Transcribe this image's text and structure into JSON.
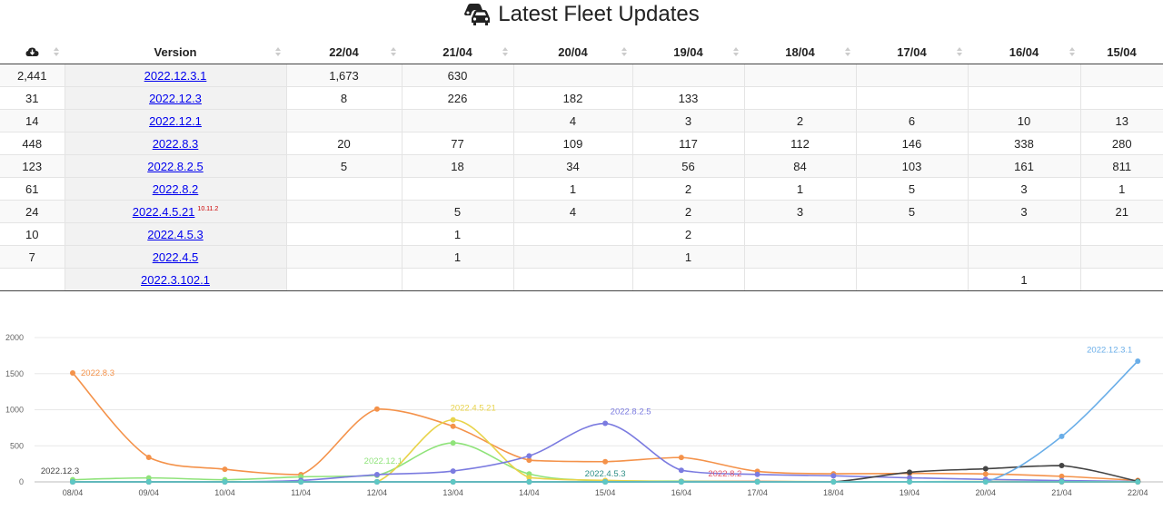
{
  "page": {
    "title": "Latest Fleet Updates",
    "title_icon": "cars-icon"
  },
  "table": {
    "columns": [
      "",
      "Version",
      "22/04",
      "21/04",
      "20/04",
      "19/04",
      "18/04",
      "17/04",
      "16/04",
      "15/04"
    ],
    "rows": [
      {
        "total": "2,441",
        "version": "2022.12.3.1",
        "sup": "",
        "cells": [
          "1,673",
          "630",
          "",
          "",
          "",
          "",
          "",
          ""
        ]
      },
      {
        "total": "31",
        "version": "2022.12.3",
        "sup": "",
        "cells": [
          "8",
          "226",
          "182",
          "133",
          "",
          "",
          "",
          ""
        ]
      },
      {
        "total": "14",
        "version": "2022.12.1",
        "sup": "",
        "cells": [
          "",
          "",
          "4",
          "3",
          "2",
          "6",
          "10",
          "13"
        ]
      },
      {
        "total": "448",
        "version": "2022.8.3",
        "sup": "",
        "cells": [
          "20",
          "77",
          "109",
          "117",
          "112",
          "146",
          "338",
          "280"
        ]
      },
      {
        "total": "123",
        "version": "2022.8.2.5",
        "sup": "",
        "cells": [
          "5",
          "18",
          "34",
          "56",
          "84",
          "103",
          "161",
          "811"
        ]
      },
      {
        "total": "61",
        "version": "2022.8.2",
        "sup": "",
        "cells": [
          "",
          "",
          "1",
          "2",
          "1",
          "5",
          "3",
          "1"
        ]
      },
      {
        "total": "24",
        "version": "2022.4.5.21",
        "sup": "10.11.2",
        "cells": [
          "",
          "5",
          "4",
          "2",
          "3",
          "5",
          "3",
          "21"
        ]
      },
      {
        "total": "10",
        "version": "2022.4.5.3",
        "sup": "",
        "cells": [
          "",
          "1",
          "",
          "2",
          "",
          "",
          "",
          ""
        ]
      },
      {
        "total": "7",
        "version": "2022.4.5",
        "sup": "",
        "cells": [
          "",
          "1",
          "",
          "1",
          "",
          "",
          "",
          ""
        ]
      },
      {
        "total": "",
        "version": "2022.3.102.1",
        "sup": "",
        "cells": [
          "",
          "",
          "",
          "",
          "",
          "",
          "1",
          ""
        ]
      }
    ]
  },
  "chart_data": {
    "type": "line",
    "categories": [
      "08/04",
      "09/04",
      "10/04",
      "11/04",
      "12/04",
      "13/04",
      "14/04",
      "15/04",
      "16/04",
      "17/04",
      "18/04",
      "19/04",
      "20/04",
      "21/04",
      "22/04"
    ],
    "ylim": [
      0,
      2000
    ],
    "yticks": [
      "0",
      "500",
      "1000",
      "1500",
      "2000"
    ],
    "grid": true,
    "series": [
      {
        "name": "2022.8.3",
        "color": "#f4924a",
        "label": "2022.8.3",
        "values": [
          1510,
          340,
          175,
          100,
          1010,
          770,
          300,
          280,
          338,
          146,
          112,
          117,
          109,
          77,
          20
        ]
      },
      {
        "name": "2022.12.1",
        "color": "#8fe37a",
        "label": "2022.12.1",
        "values": [
          30,
          55,
          30,
          70,
          90,
          540,
          110,
          13,
          10,
          6,
          2,
          3,
          4,
          0,
          0
        ]
      },
      {
        "name": "2022.4.5.21",
        "color": "#e8d34a",
        "label": "2022.4.5.21",
        "values": [
          0,
          0,
          0,
          0,
          0,
          860,
          60,
          21,
          3,
          5,
          3,
          2,
          4,
          5,
          0
        ]
      },
      {
        "name": "2022.8.2.5",
        "color": "#7b7be0",
        "label": "2022.8.2.5",
        "values": [
          0,
          0,
          0,
          20,
          100,
          150,
          360,
          811,
          161,
          103,
          84,
          56,
          34,
          18,
          5
        ]
      },
      {
        "name": "2022.4.5.3",
        "color": "#2e8f86",
        "label": "2022.4.5.3",
        "values": [
          0,
          0,
          0,
          0,
          0,
          0,
          0,
          0,
          0,
          0,
          0,
          2,
          0,
          1,
          0
        ]
      },
      {
        "name": "2022.8.2",
        "color": "#e5586a",
        "label": "2022.8.2",
        "values": [
          0,
          0,
          0,
          0,
          0,
          0,
          0,
          1,
          3,
          5,
          1,
          2,
          1,
          0,
          0
        ]
      },
      {
        "name": "2022.12.3",
        "color": "#444444",
        "label": "2022.12.3",
        "values": [
          0,
          0,
          0,
          0,
          0,
          0,
          0,
          0,
          0,
          0,
          0,
          133,
          182,
          226,
          8
        ]
      },
      {
        "name": "2022.12.3.1",
        "color": "#6aaee8",
        "label": "2022.12.3.1",
        "values": [
          0,
          0,
          0,
          0,
          0,
          0,
          0,
          0,
          0,
          0,
          0,
          0,
          0,
          630,
          1673
        ]
      },
      {
        "name": "2022.4.5",
        "color": "#5ec8c4",
        "label": "",
        "values": [
          0,
          0,
          0,
          0,
          0,
          0,
          0,
          0,
          0,
          0,
          0,
          1,
          0,
          1,
          0
        ]
      }
    ]
  }
}
